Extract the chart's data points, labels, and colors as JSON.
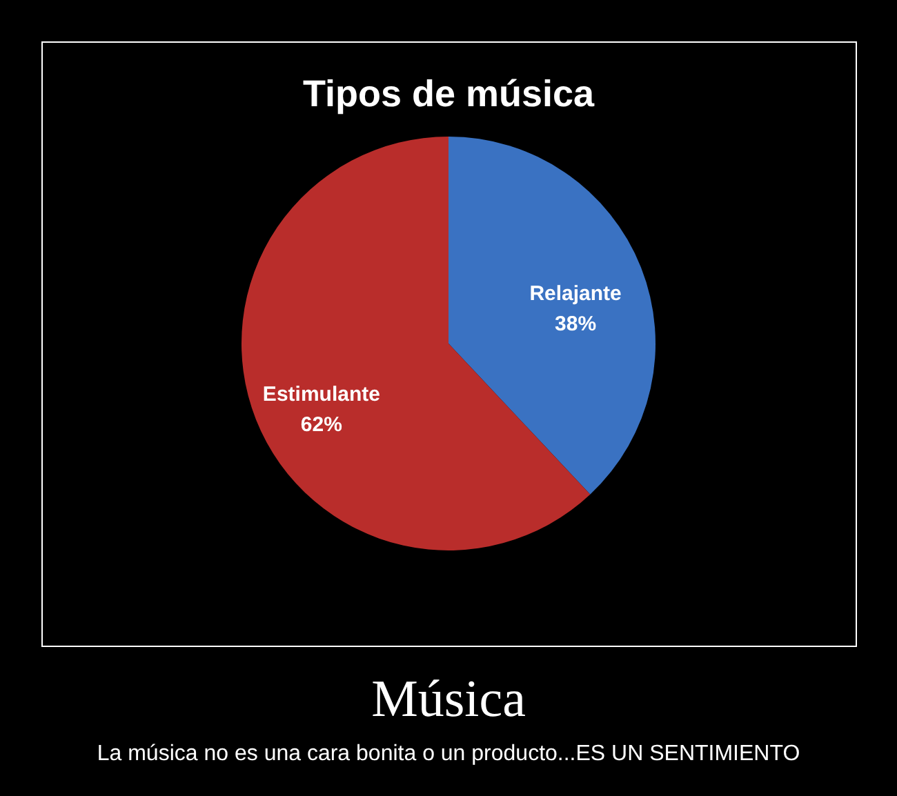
{
  "chart_data": {
    "type": "pie",
    "title": "Tipos de música",
    "categories": [
      "Relajante",
      "Estimulante"
    ],
    "values": [
      38,
      62
    ],
    "colors": [
      "#3a72c2",
      "#b92d2b"
    ],
    "value_labels": [
      "38%",
      "62%"
    ],
    "legend": false,
    "annotations": [
      "Música",
      "La música no es una cara bonita o un producto...ES UN SENTIMIENTO"
    ]
  }
}
